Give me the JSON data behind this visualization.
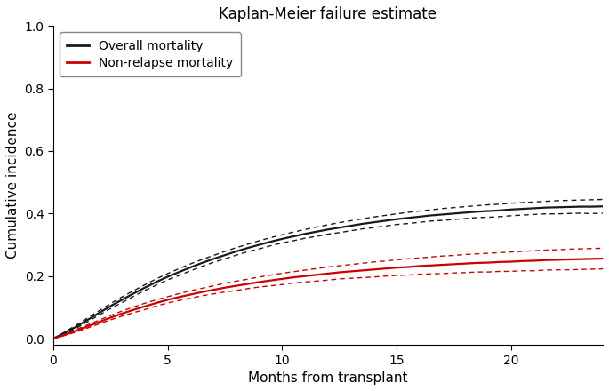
{
  "title": "Kaplan-Meier failure estimate",
  "xlabel": "Months from transplant",
  "ylabel": "Cumulative incidence",
  "xlim": [
    0,
    24
  ],
  "ylim": [
    -0.02,
    1.0
  ],
  "yticks": [
    0.0,
    0.2,
    0.4,
    0.6,
    0.8,
    1.0
  ],
  "xticks": [
    0,
    5,
    10,
    15,
    20
  ],
  "legend_labels": [
    "Overall mortality",
    "Non-relapse mortality"
  ],
  "overall_color": "#1a1a1a",
  "nrm_color": "#cc0000",
  "overall_main": {
    "x": [
      0,
      0.5,
      1.0,
      1.5,
      2.0,
      2.5,
      3.0,
      3.5,
      4.0,
      4.5,
      5.0,
      5.5,
      6.0,
      6.5,
      7.0,
      7.5,
      8.0,
      8.5,
      9.0,
      9.5,
      10.0,
      10.5,
      11.0,
      11.5,
      12.0,
      12.5,
      13.0,
      13.5,
      14.0,
      14.5,
      15.0,
      15.5,
      16.0,
      16.5,
      17.0,
      17.5,
      18.0,
      18.5,
      19.0,
      19.5,
      20.0,
      20.5,
      21.0,
      21.5,
      22.0,
      22.5,
      23.0,
      23.5,
      24.0
    ],
    "y": [
      0.0,
      0.018,
      0.038,
      0.06,
      0.082,
      0.104,
      0.124,
      0.144,
      0.163,
      0.181,
      0.198,
      0.213,
      0.228,
      0.242,
      0.255,
      0.267,
      0.279,
      0.29,
      0.3,
      0.31,
      0.319,
      0.327,
      0.335,
      0.342,
      0.349,
      0.355,
      0.361,
      0.367,
      0.372,
      0.377,
      0.382,
      0.386,
      0.39,
      0.394,
      0.397,
      0.4,
      0.403,
      0.406,
      0.408,
      0.41,
      0.413,
      0.415,
      0.417,
      0.419,
      0.42,
      0.421,
      0.422,
      0.422,
      0.423
    ]
  },
  "overall_upper": {
    "y": [
      0.0,
      0.021,
      0.043,
      0.066,
      0.089,
      0.112,
      0.133,
      0.153,
      0.172,
      0.191,
      0.208,
      0.224,
      0.239,
      0.253,
      0.266,
      0.279,
      0.291,
      0.302,
      0.313,
      0.323,
      0.332,
      0.341,
      0.349,
      0.357,
      0.364,
      0.371,
      0.377,
      0.383,
      0.389,
      0.394,
      0.399,
      0.404,
      0.408,
      0.412,
      0.416,
      0.419,
      0.422,
      0.425,
      0.428,
      0.43,
      0.433,
      0.435,
      0.437,
      0.439,
      0.441,
      0.442,
      0.443,
      0.444,
      0.445
    ]
  },
  "overall_lower": {
    "y": [
      0.0,
      0.015,
      0.033,
      0.054,
      0.075,
      0.096,
      0.115,
      0.135,
      0.154,
      0.171,
      0.188,
      0.202,
      0.217,
      0.231,
      0.244,
      0.255,
      0.267,
      0.278,
      0.287,
      0.297,
      0.306,
      0.313,
      0.321,
      0.327,
      0.334,
      0.339,
      0.345,
      0.351,
      0.355,
      0.36,
      0.365,
      0.368,
      0.372,
      0.376,
      0.378,
      0.381,
      0.384,
      0.387,
      0.388,
      0.39,
      0.393,
      0.395,
      0.397,
      0.399,
      0.399,
      0.4,
      0.401,
      0.4,
      0.401
    ]
  },
  "nrm_main": {
    "x": [
      0,
      0.5,
      1.0,
      1.5,
      2.0,
      2.5,
      3.0,
      3.5,
      4.0,
      4.5,
      5.0,
      5.5,
      6.0,
      6.5,
      7.0,
      7.5,
      8.0,
      8.5,
      9.0,
      9.5,
      10.0,
      10.5,
      11.0,
      11.5,
      12.0,
      12.5,
      13.0,
      13.5,
      14.0,
      14.5,
      15.0,
      15.5,
      16.0,
      16.5,
      17.0,
      17.5,
      18.0,
      18.5,
      19.0,
      19.5,
      20.0,
      20.5,
      21.0,
      21.5,
      22.0,
      22.5,
      23.0,
      23.5,
      24.0
    ],
    "y": [
      0.0,
      0.012,
      0.025,
      0.039,
      0.053,
      0.067,
      0.08,
      0.092,
      0.103,
      0.114,
      0.124,
      0.133,
      0.141,
      0.149,
      0.156,
      0.163,
      0.169,
      0.175,
      0.181,
      0.186,
      0.191,
      0.196,
      0.2,
      0.204,
      0.208,
      0.212,
      0.215,
      0.218,
      0.221,
      0.224,
      0.227,
      0.229,
      0.232,
      0.234,
      0.236,
      0.238,
      0.24,
      0.242,
      0.243,
      0.245,
      0.246,
      0.248,
      0.249,
      0.251,
      0.252,
      0.253,
      0.254,
      0.255,
      0.256
    ]
  },
  "nrm_upper": {
    "y": [
      0.0,
      0.014,
      0.029,
      0.044,
      0.059,
      0.074,
      0.088,
      0.101,
      0.113,
      0.124,
      0.134,
      0.144,
      0.153,
      0.161,
      0.169,
      0.177,
      0.184,
      0.19,
      0.197,
      0.203,
      0.209,
      0.214,
      0.219,
      0.224,
      0.229,
      0.233,
      0.237,
      0.241,
      0.245,
      0.248,
      0.252,
      0.255,
      0.258,
      0.261,
      0.264,
      0.266,
      0.269,
      0.271,
      0.273,
      0.275,
      0.277,
      0.279,
      0.281,
      0.283,
      0.284,
      0.286,
      0.287,
      0.288,
      0.289
    ]
  },
  "nrm_lower": {
    "y": [
      0.0,
      0.01,
      0.021,
      0.034,
      0.047,
      0.06,
      0.072,
      0.083,
      0.093,
      0.104,
      0.114,
      0.122,
      0.129,
      0.137,
      0.143,
      0.149,
      0.154,
      0.16,
      0.165,
      0.169,
      0.173,
      0.178,
      0.181,
      0.184,
      0.187,
      0.191,
      0.193,
      0.195,
      0.197,
      0.2,
      0.202,
      0.203,
      0.206,
      0.207,
      0.208,
      0.21,
      0.211,
      0.213,
      0.213,
      0.215,
      0.215,
      0.217,
      0.217,
      0.219,
      0.22,
      0.22,
      0.221,
      0.222,
      0.223
    ]
  }
}
